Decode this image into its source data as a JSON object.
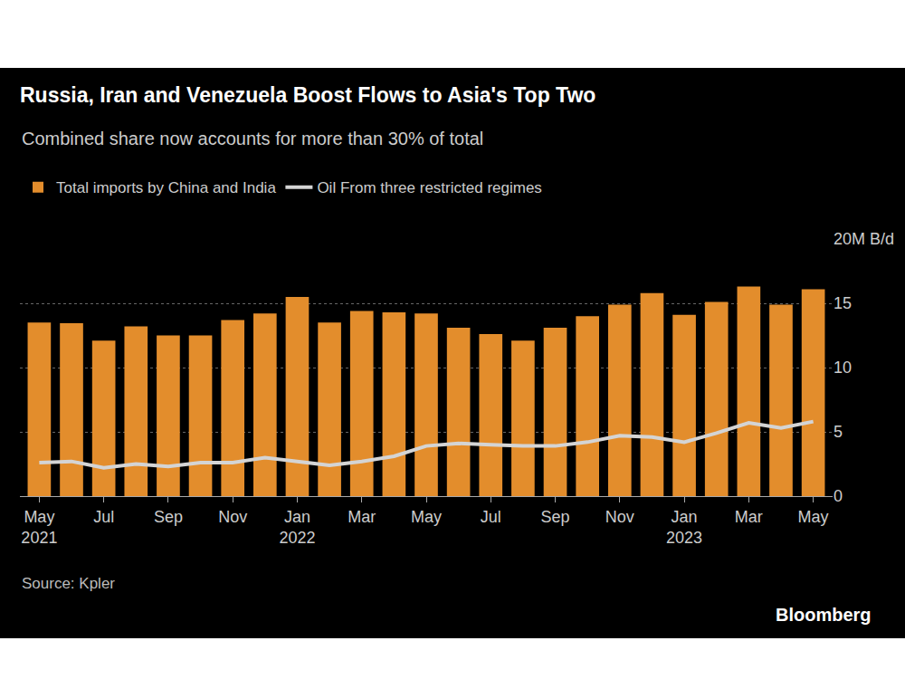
{
  "chart_data": {
    "type": "bar",
    "title": "Russia, Iran and Venezuela Boost Flows to Asia's Top Two",
    "subtitle": "Combined share now accounts for more than 30% of total",
    "source": "Source: Kpler",
    "logo": "Bloomberg",
    "categories": [
      "May 2021",
      null,
      "Jul",
      null,
      "Sep",
      null,
      "Nov",
      null,
      "Jan 2022",
      null,
      "Mar",
      null,
      "May",
      null,
      "Jul",
      null,
      "Sep",
      null,
      "Nov",
      null,
      "Jan 2023",
      null,
      "Mar",
      null,
      "May"
    ],
    "series": [
      {
        "name": "Total imports by China and India",
        "type": "bar",
        "color": "#e38d2c",
        "values": [
          13.5,
          13.45,
          12.1,
          13.2,
          12.5,
          12.5,
          13.7,
          14.2,
          15.5,
          13.5,
          14.4,
          14.3,
          14.2,
          13.1,
          12.6,
          12.1,
          13.1,
          14.0,
          14.9,
          15.8,
          14.1,
          15.1,
          16.3,
          14.9,
          16.1
        ]
      },
      {
        "name": "Oil From three restricted regimes",
        "type": "line",
        "color": "#d4d4d4",
        "values": [
          2.6,
          2.7,
          2.2,
          2.5,
          2.3,
          2.6,
          2.6,
          3.0,
          2.7,
          2.4,
          2.7,
          3.1,
          3.9,
          4.1,
          4.0,
          3.9,
          3.9,
          4.2,
          4.7,
          4.6,
          4.2,
          4.9,
          5.7,
          5.3,
          5.8
        ]
      }
    ],
    "ylim": [
      0,
      20
    ],
    "yticks": [
      0,
      5,
      10,
      15,
      {
        "value": 20,
        "label": "20M B/d"
      }
    ],
    "grid": true,
    "legend": "top"
  }
}
